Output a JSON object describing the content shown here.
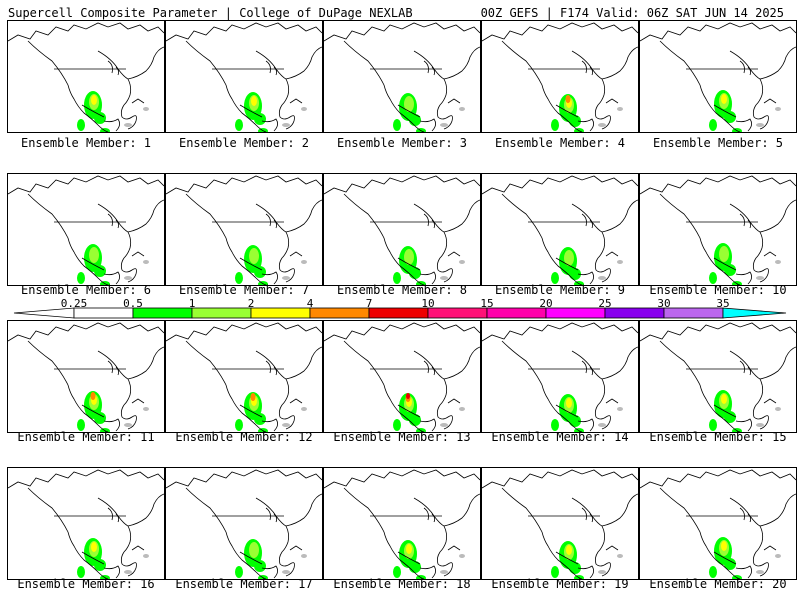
{
  "header": {
    "left_title": "Supercell Composite Parameter | College of DuPage NEXLAB",
    "right_title": "00Z GEFS | F174 Valid: 06Z SAT JUN 14 2025"
  },
  "colorbar": {
    "labels": [
      "0.25",
      "0.5",
      "1",
      "2",
      "4",
      "7",
      "10",
      "15",
      "20",
      "25",
      "30",
      "35"
    ],
    "colors": [
      "#ffffff",
      "#00ff00",
      "#99ff33",
      "#ffff00",
      "#ff8800",
      "#ee0000",
      "#ff1177",
      "#ff00aa",
      "#ff00ff",
      "#8800ee",
      "#bb66ee",
      "#00ffff"
    ]
  },
  "members": [
    {
      "label": "Ensemble Member: 1",
      "intensity": 3
    },
    {
      "label": "Ensemble Member: 2",
      "intensity": 3
    },
    {
      "label": "Ensemble Member: 3",
      "intensity": 2
    },
    {
      "label": "Ensemble Member: 4",
      "intensity": 4
    },
    {
      "label": "Ensemble Member: 5",
      "intensity": 3
    },
    {
      "label": "Ensemble Member: 6",
      "intensity": 2
    },
    {
      "label": "Ensemble Member: 7",
      "intensity": 2
    },
    {
      "label": "Ensemble Member: 8",
      "intensity": 2
    },
    {
      "label": "Ensemble Member: 9",
      "intensity": 2
    },
    {
      "label": "Ensemble Member: 10",
      "intensity": 2
    },
    {
      "label": "Ensemble Member: 11",
      "intensity": 4
    },
    {
      "label": "Ensemble Member: 12",
      "intensity": 4
    },
    {
      "label": "Ensemble Member: 13",
      "intensity": 5
    },
    {
      "label": "Ensemble Member: 14",
      "intensity": 3
    },
    {
      "label": "Ensemble Member: 15",
      "intensity": 3
    },
    {
      "label": "Ensemble Member: 16",
      "intensity": 3
    },
    {
      "label": "Ensemble Member: 17",
      "intensity": 2
    },
    {
      "label": "Ensemble Member: 18",
      "intensity": 3
    },
    {
      "label": "Ensemble Member: 19",
      "intensity": 3
    },
    {
      "label": "Ensemble Member: 20",
      "intensity": 3
    }
  ]
}
